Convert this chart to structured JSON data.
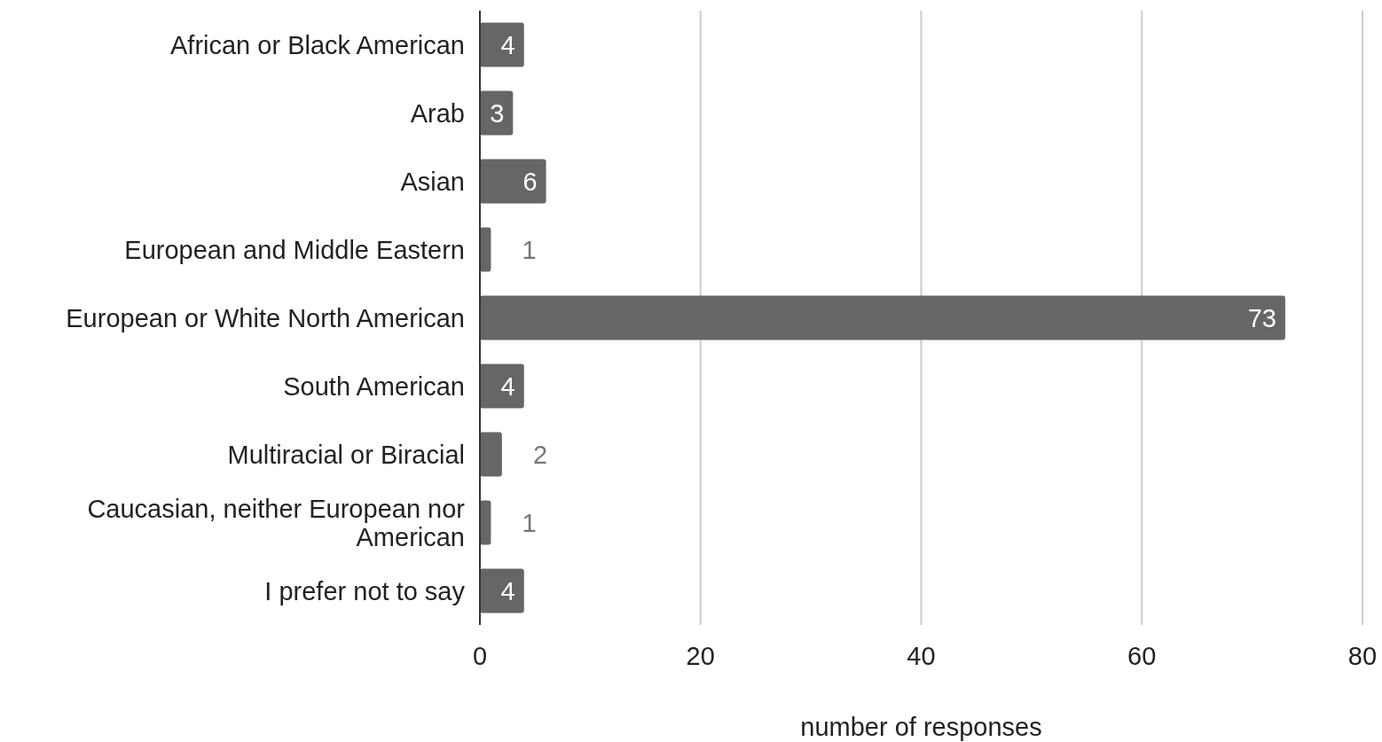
{
  "chart_data": {
    "type": "bar",
    "orientation": "horizontal",
    "xlabel": "number of responses",
    "categories": [
      "African or Black American",
      "Arab",
      "Asian",
      "European and Middle Eastern",
      "European or White North American",
      "South American",
      "Multiracial or Biracial",
      "Caucasian, neither European nor American",
      "I prefer not to say"
    ],
    "values": [
      4,
      3,
      6,
      1,
      73,
      4,
      2,
      1,
      4
    ],
    "color": "#666666",
    "xlim": [
      0,
      80
    ],
    "xticks": [
      0,
      20,
      40,
      60,
      80
    ],
    "grid": "x",
    "data_labels": true
  }
}
